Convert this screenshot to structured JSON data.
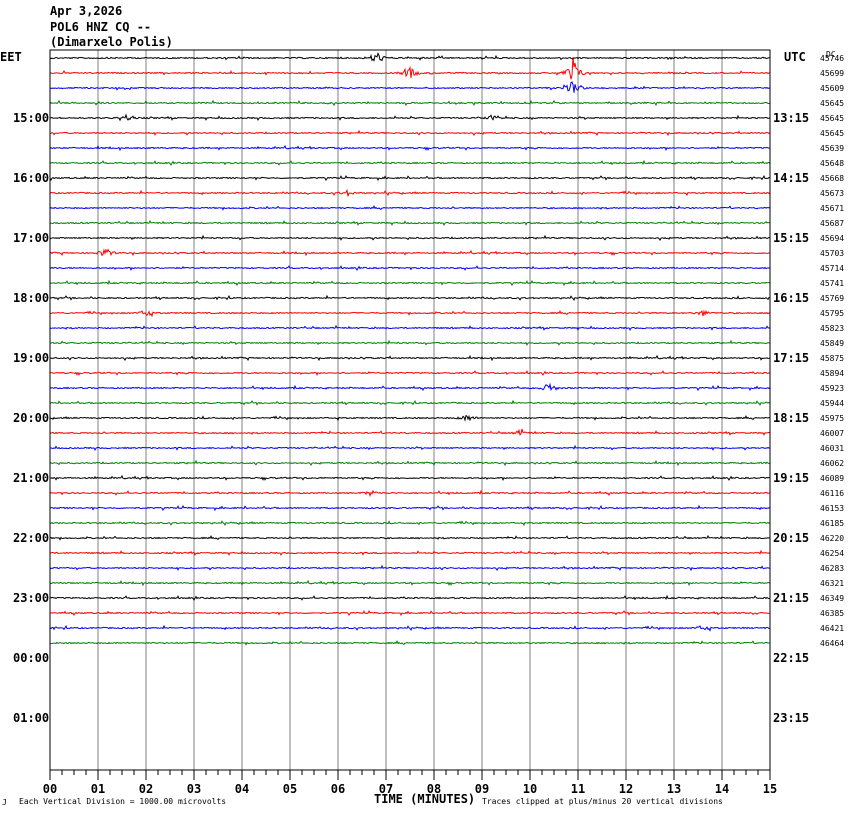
{
  "header": {
    "date": "Apr 3,2026",
    "station": "POL6 HNZ CQ --",
    "location": "(Dimarxelo Polis)"
  },
  "left_timezone": "EET",
  "right_timezone": "UTC",
  "dc_label": "DC",
  "xlabel": "TIME (MINUTES)",
  "footer_left_mark": "J",
  "footer_left": "Each Vertical Division = 1000.00 microvolts",
  "footer_right": "Traces clipped at plus/minus 20 vertical divisions",
  "colors": {
    "trace_cycle": [
      "#000000",
      "#ff0000",
      "#0000ff",
      "#008000"
    ],
    "grid": "#808080"
  },
  "chart_data": {
    "type": "line",
    "title": "",
    "xlim": [
      0,
      15
    ],
    "x_ticks": [
      "00",
      "01",
      "02",
      "03",
      "04",
      "05",
      "06",
      "07",
      "08",
      "09",
      "10",
      "11",
      "12",
      "13",
      "14",
      "15"
    ],
    "left_hour_labels": [
      "15:00",
      "16:00",
      "17:00",
      "18:00",
      "19:00",
      "20:00",
      "21:00",
      "22:00",
      "23:00",
      "00:00",
      "01:00"
    ],
    "right_hour_labels": [
      "13:15",
      "14:15",
      "15:15",
      "16:15",
      "17:15",
      "18:15",
      "19:15",
      "20:15",
      "21:15",
      "22:15",
      "23:15"
    ],
    "trace_dc_offsets": [
      45746,
      45699,
      45609,
      45645,
      45645,
      45645,
      45639,
      45648,
      45668,
      45673,
      45671,
      45687,
      45694,
      45703,
      45714,
      45741,
      45769,
      45795,
      45823,
      45849,
      45875,
      45894,
      45923,
      45944,
      45975,
      46007,
      46031,
      46062,
      46089,
      46116,
      46153,
      46185,
      46220,
      46254,
      46283,
      46321,
      46349,
      46385,
      46421,
      46464
    ],
    "events": [
      {
        "trace": 0,
        "minute": 6.8,
        "amp": 8
      },
      {
        "trace": 1,
        "minute": 7.5,
        "amp": 7
      },
      {
        "trace": 1,
        "minute": 10.9,
        "amp": 18
      },
      {
        "trace": 2,
        "minute": 10.9,
        "amp": 9
      },
      {
        "trace": 4,
        "minute": 1.6,
        "amp": 3
      },
      {
        "trace": 4,
        "minute": 9.2,
        "amp": 3
      },
      {
        "trace": 9,
        "minute": 6.2,
        "amp": 3
      },
      {
        "trace": 13,
        "minute": 1.15,
        "amp": 6
      },
      {
        "trace": 17,
        "minute": 2.0,
        "amp": 4
      },
      {
        "trace": 17,
        "minute": 13.6,
        "amp": 3
      },
      {
        "trace": 22,
        "minute": 10.4,
        "amp": 6
      },
      {
        "trace": 24,
        "minute": 8.7,
        "amp": 4
      },
      {
        "trace": 25,
        "minute": 9.8,
        "amp": 3
      },
      {
        "trace": 29,
        "minute": 6.7,
        "amp": 3
      },
      {
        "trace": 38,
        "minute": 13.6,
        "amp": 3
      }
    ]
  }
}
